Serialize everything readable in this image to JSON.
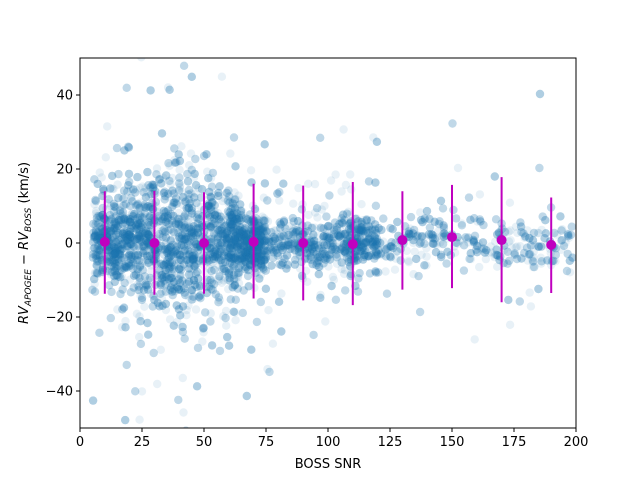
{
  "chart_data": {
    "type": "scatter",
    "xlabel": "BOSS SNR",
    "ylabel_parts": {
      "rv1": "RV",
      "sub1": "APOGEE",
      "minus": " − ",
      "rv2": "RV",
      "sub2": "BOSS",
      "unit": " (km/s)"
    },
    "xlim": [
      0,
      200
    ],
    "ylim": [
      -50,
      50
    ],
    "xticks": [
      0,
      25,
      50,
      75,
      100,
      125,
      150,
      175,
      200
    ],
    "yticks": [
      -40,
      -20,
      0,
      20,
      40
    ],
    "grid": false,
    "colors": {
      "scatter": "#1f77b4",
      "binned": "#bf00bf"
    },
    "binned_medians": {
      "x": [
        10,
        30,
        50,
        70,
        90,
        110,
        130,
        150,
        170,
        190
      ],
      "y": [
        0.3,
        0.0,
        0.0,
        0.3,
        0.0,
        -0.3,
        0.8,
        1.6,
        0.8,
        -0.5
      ],
      "yerr_low": [
        14.0,
        14.0,
        13.7,
        15.3,
        15.5,
        16.5,
        13.4,
        13.8,
        16.8,
        13.0
      ],
      "yerr_high": [
        13.7,
        14.1,
        13.7,
        15.7,
        15.5,
        16.8,
        13.2,
        14.1,
        17.0,
        12.8
      ]
    }
  }
}
